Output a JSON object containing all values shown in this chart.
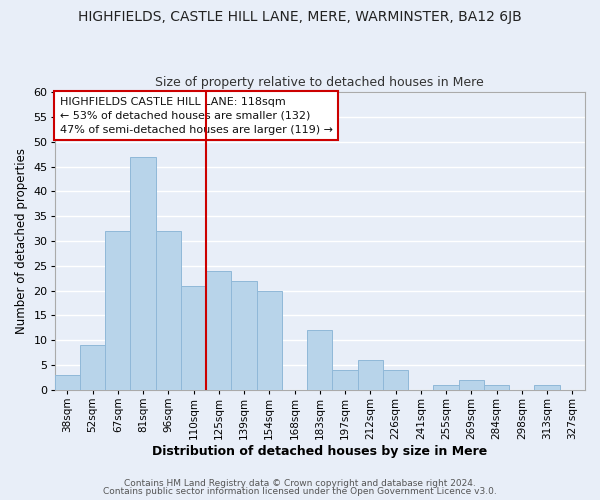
{
  "title": "HIGHFIELDS, CASTLE HILL LANE, MERE, WARMINSTER, BA12 6JB",
  "subtitle": "Size of property relative to detached houses in Mere",
  "xlabel": "Distribution of detached houses by size in Mere",
  "ylabel": "Number of detached properties",
  "categories": [
    "38sqm",
    "52sqm",
    "67sqm",
    "81sqm",
    "96sqm",
    "110sqm",
    "125sqm",
    "139sqm",
    "154sqm",
    "168sqm",
    "183sqm",
    "197sqm",
    "212sqm",
    "226sqm",
    "241sqm",
    "255sqm",
    "269sqm",
    "284sqm",
    "298sqm",
    "313sqm",
    "327sqm"
  ],
  "values": [
    3,
    9,
    32,
    47,
    32,
    21,
    24,
    22,
    20,
    0,
    12,
    4,
    6,
    4,
    0,
    1,
    2,
    1,
    0,
    1,
    0
  ],
  "bar_color": "#b8d4ea",
  "bar_edge_color": "#90b8d8",
  "vline_x": 6.0,
  "vline_color": "#cc0000",
  "ylim": [
    0,
    60
  ],
  "yticks": [
    0,
    5,
    10,
    15,
    20,
    25,
    30,
    35,
    40,
    45,
    50,
    55,
    60
  ],
  "annotation_title": "HIGHFIELDS CASTLE HILL LANE: 118sqm",
  "annotation_line1": "← 53% of detached houses are smaller (132)",
  "annotation_line2": "47% of semi-detached houses are larger (119) →",
  "box_color": "#cc0000",
  "footer1": "Contains HM Land Registry data © Crown copyright and database right 2024.",
  "footer2": "Contains public sector information licensed under the Open Government Licence v3.0.",
  "background_color": "#e8eef8",
  "grid_color": "#ffffff"
}
